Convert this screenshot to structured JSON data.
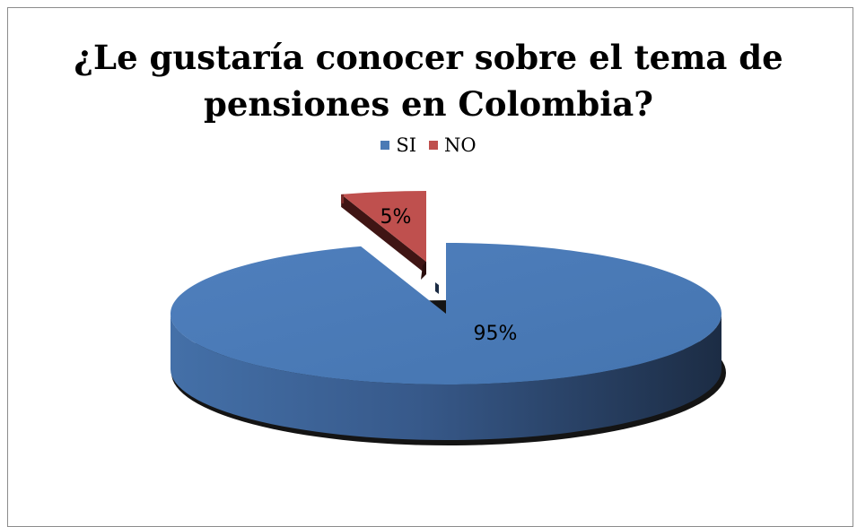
{
  "chart_data": {
    "type": "pie",
    "title": "¿Le gustaría conocer sobre el tema de pensiones en Colombia?",
    "categories": [
      "SI",
      "NO"
    ],
    "values": [
      95,
      5
    ],
    "data_labels": [
      "95%",
      "5%"
    ],
    "legend_position": "top",
    "three_d": true,
    "colors": {
      "SI": "#4a7ab5",
      "NO": "#bf504e"
    }
  },
  "legend": {
    "items": [
      {
        "label": "SI",
        "color": "#4a7ab5"
      },
      {
        "label": "NO",
        "color": "#bf504e"
      }
    ]
  }
}
